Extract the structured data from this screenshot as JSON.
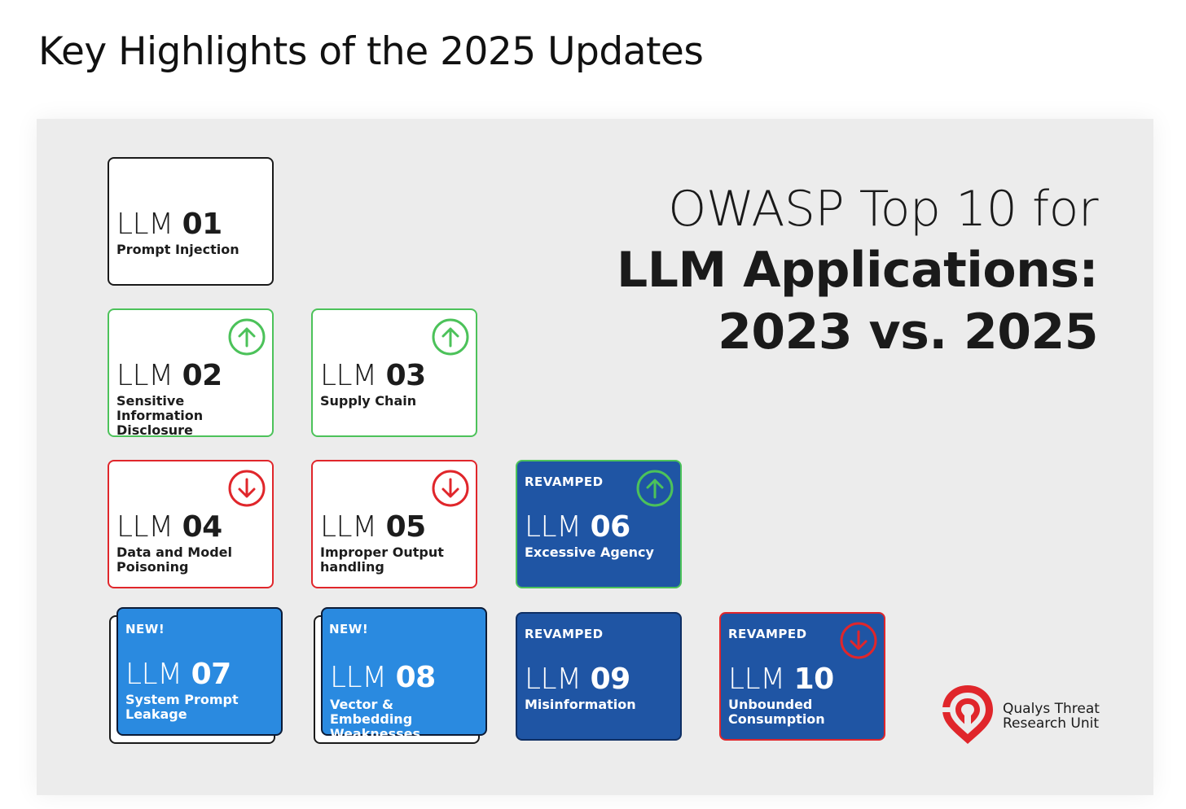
{
  "heading": "Key Highlights of the 2025 Updates",
  "title": {
    "line1": "OWASP Top 10 for",
    "line2": "LLM Applications:",
    "line3": "2023 vs. 2025"
  },
  "cards": {
    "c01": {
      "prefix": "LLM ",
      "num": "01",
      "desc": "Prompt Injection"
    },
    "c02": {
      "prefix": "LLM ",
      "num": "02",
      "desc": "Sensitive Information Disclosure",
      "change": "up"
    },
    "c03": {
      "prefix": "LLM ",
      "num": "03",
      "desc": "Supply Chain",
      "change": "up"
    },
    "c04": {
      "prefix": "LLM ",
      "num": "04",
      "desc": "Data and Model Poisoning",
      "change": "down"
    },
    "c05": {
      "prefix": "LLM ",
      "num": "05",
      "desc": "Improper Output handling",
      "change": "down"
    },
    "c06": {
      "prefix": "LLM ",
      "num": "06",
      "desc": "Excessive Agency",
      "tag": "REVAMPED",
      "change": "up"
    },
    "c07": {
      "prefix": "LLM ",
      "num": "07",
      "desc": "System Prompt Leakage",
      "tag": "NEW!"
    },
    "c08": {
      "prefix": "LLM ",
      "num": "08",
      "desc": "Vector & Embedding Weaknesses",
      "tag": "NEW!"
    },
    "c09": {
      "prefix": "LLM ",
      "num": "09",
      "desc": "Misinformation",
      "tag": "REVAMPED"
    },
    "c10": {
      "prefix": "LLM ",
      "num": "10",
      "desc": "Unbounded Consumption",
      "tag": "REVAMPED",
      "change": "down"
    }
  },
  "logo": {
    "line1": "Qualys Threat",
    "line2": "Research Unit",
    "icon": "qualys-shield-icon"
  },
  "colors": {
    "up": "#4cc25a",
    "down": "#e0262b",
    "revamped": "#1f55a4",
    "new": "#2a8ae0",
    "brand": "#e0262b"
  }
}
